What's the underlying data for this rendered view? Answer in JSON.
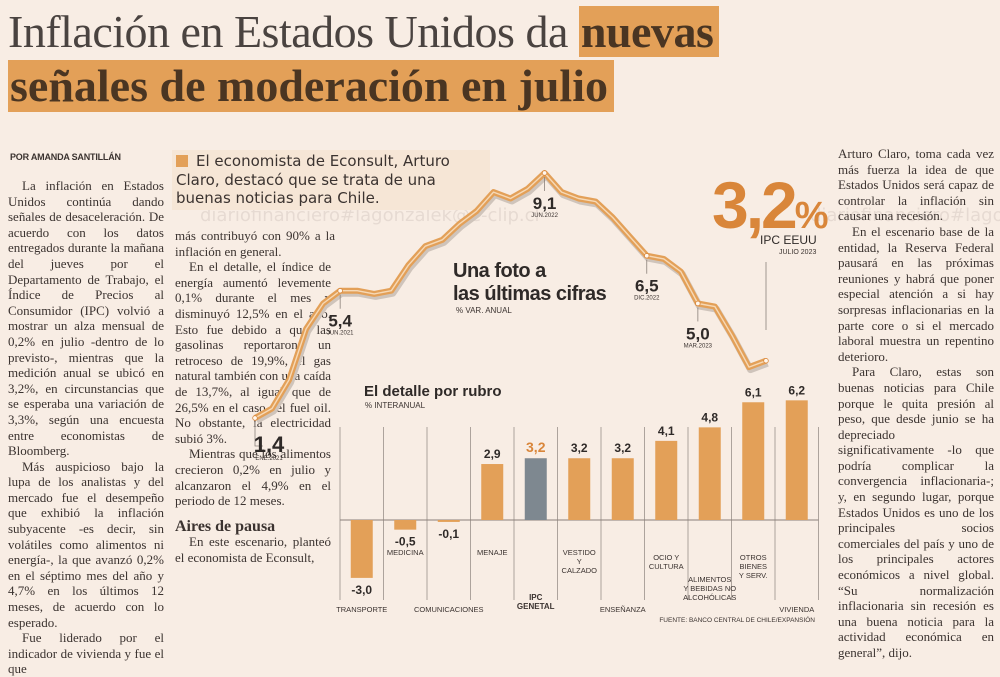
{
  "headline": {
    "part1": "Inflación en Estados Unidos da ",
    "part1_highlight": "nuevas",
    "part2_highlight": "señales de moderación en julio"
  },
  "byline": "POR AMANDA SANTILLÁN",
  "pullquote": "El economista de Econsult, Arturo Claro, destacó que se trata de una buenas noticias para Chile.",
  "watermarks": [
    "diariofinanciero#lagonzalek@e-clip.cl",
    "diariofinanciero#lago"
  ],
  "column1": [
    "La inflación en Estados Unidos continúa dando señales de desaceleración. De acuerdo con los datos entregados durante la mañana del jueves por el Departamento de Trabajo, el Índice de Precios al Consumidor (IPC) volvió a mostrar un alza mensual de 0,2% en julio -dentro de lo previsto-, mientras que la medición anual se ubicó en 3,2%, en circunstancias que se esperaba una variación de 3,3%, según una encuesta entre economistas de Bloomberg.",
    "Más auspicioso bajo la lupa de los analistas y del mercado fue el desempeño que exhibió la inflación subyacente -es decir, sin volátiles como alimentos ni energía-, la que avanzó 0,2% en el séptimo mes del año y 4,7% en los últimos 12 meses, de acuerdo con lo esperado.",
    "Fue liderado por el indicador de vivienda y fue el que"
  ],
  "column2": {
    "lead": "más contribuyó con 90% a la inflación en general.",
    "p1_wide": "En el detalle, el índice de energía aumentó levemente 0,1% durante el mes y disminuyó 12,5% en el año. Esto fue debido a que las gasolinas reportaron un retroceso de 19,9%, el gas natural también con una caída de 13,7%, al igual que de 26,5% en el caso del fuel oil. No obstante, la electricidad subió 3%.",
    "p2": "Mientras que los alimentos crecieron 0,2% en julio y alcanzaron el 4,9% en el periodo de 12 meses.",
    "subhead": "Aires de pausa",
    "p3": "En este escenario, planteó el economista de Econsult,"
  },
  "column3": [
    "Arturo Claro, toma cada vez más fuerza la idea de que Estados Unidos será capaz de controlar la inflación sin causar una recesión.",
    "En el escenario base de la entidad, la Reserva Federal pausará en las próximas reuniones y habrá que poner especial atención a si hay sorpresas inflacionarias en la parte core o si el mercado laboral muestra un repentino deterioro.",
    "Para Claro, estas son buenas noticias para Chile porque le quita presión al peso, que desde junio se ha depreciado significativamente -lo que podría complicar la convergencia inflacionaria-; y, en segundo lugar, porque Estados Unidos es uno de los principales socios comerciales del país y uno de los principales actores económicos a nivel global. “Su normalización inflacionaria sin recesión es una buena noticia para la actividad económica en general”, dijo."
  ],
  "colors": {
    "accent": "#e3a058",
    "accent_dark": "#d9863a",
    "ipc_bar": "#7e8890",
    "text": "#3b3330",
    "background": "#f8ede4"
  },
  "chart_data": [
    {
      "type": "line",
      "title": "Una foto a las últimas cifras",
      "subtitle": "% VAR. ANUAL",
      "headline_value": "3,2%",
      "headline_label": "IPC EEUU",
      "headline_date": "JULIO 2023",
      "x_start": "ENE.2021",
      "x_end": "JUL.2023",
      "values": [
        1.4,
        1.7,
        2.6,
        4.2,
        5.0,
        5.4,
        5.4,
        5.3,
        5.4,
        6.2,
        6.8,
        7.0,
        7.5,
        7.9,
        8.5,
        8.3,
        8.6,
        9.1,
        8.5,
        8.3,
        8.2,
        7.7,
        7.1,
        6.5,
        6.4,
        6.0,
        5.0,
        4.9,
        4.0,
        3.0,
        3.2
      ],
      "annotations": [
        {
          "index": 0,
          "value": "1,4",
          "date": "ENE.2021"
        },
        {
          "index": 5,
          "value": "5,4",
          "date": "JUN.2021"
        },
        {
          "index": 17,
          "value": "9,1",
          "date": "JUN.2022"
        },
        {
          "index": 23,
          "value": "6,5",
          "date": "DIC.2022"
        },
        {
          "index": 26,
          "value": "5,0",
          "date": "MAR.2023"
        },
        {
          "index": 30,
          "value": "3,2",
          "date": "JULIO 2023"
        }
      ],
      "ylim": [
        0,
        10
      ]
    },
    {
      "type": "bar",
      "title": "El detalle por rubro",
      "subtitle": "% INTERANUAL",
      "categories": [
        "TRANSPORTE",
        "MEDICINA",
        "COMUNICACIONES",
        "MENAJE",
        "IPC GENETAL",
        "VESTIDO Y CALZADO",
        "ENSEÑANZA",
        "OCIO Y CULTURA",
        "ALIMENTOS Y BEBIDAS NO ALCOHÓLICAS",
        "OTROS BIENES Y SERV.",
        "VIVIENDA"
      ],
      "values": [
        -3.0,
        -0.5,
        -0.1,
        2.9,
        3.2,
        3.2,
        3.2,
        4.1,
        4.8,
        6.1,
        6.2
      ],
      "value_labels": [
        "-3,0",
        "-0,5",
        "-0,1",
        "2,9",
        "3,2",
        "3,2",
        "3,2",
        "4,1",
        "4,8",
        "6,1",
        "6,2"
      ],
      "highlight_index": 4,
      "ylim": [
        -3.5,
        6.5
      ],
      "source": "FUENTE: BANCO CENTRAL DE CHILE/EXPANSIÓN"
    }
  ]
}
